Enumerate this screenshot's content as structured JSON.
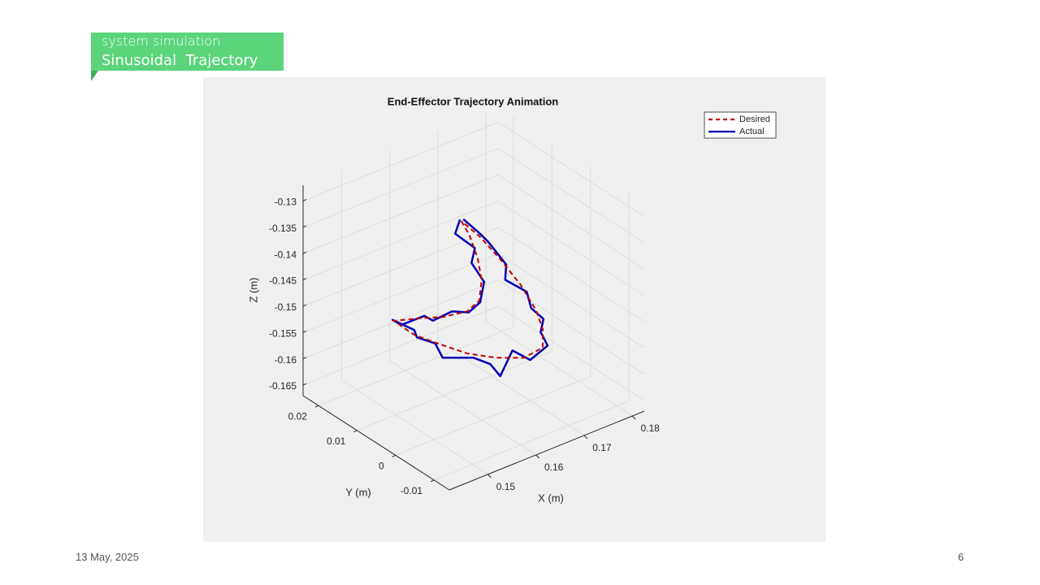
{
  "header": {
    "subtitle": "system simulation",
    "title": "Sinusoidal  Trajectory"
  },
  "footer": {
    "date": "13 May, 2025",
    "page": "6"
  },
  "chart_data": {
    "type": "line3d",
    "title": "End-Effector Trajectory Animation",
    "xlabel": "X (m)",
    "ylabel": "Y (m)",
    "zlabel": "Z (m)",
    "xlim": [
      0.142,
      0.1825
    ],
    "ylim": [
      -0.014,
      0.024
    ],
    "zlim": [
      -0.167,
      -0.127
    ],
    "xticks": [
      0.15,
      0.16,
      0.17,
      0.18
    ],
    "yticks": [
      -0.01,
      0,
      0.01,
      0.02
    ],
    "zticks": [
      -0.165,
      -0.16,
      -0.155,
      -0.15,
      -0.145,
      -0.14,
      -0.135,
      -0.13
    ],
    "grid": true,
    "legend": "upper right",
    "series": [
      {
        "name": "Desired",
        "color": "#c00000",
        "style": "dashed",
        "x": [
          0.1621,
          0.1638,
          0.1655,
          0.1663,
          0.1658,
          0.1633,
          0.1582,
          0.1532,
          0.1481,
          0.1523,
          0.1574,
          0.1633,
          0.1692,
          0.1751,
          0.179,
          0.179,
          0.1776,
          0.1743,
          0.17,
          0.1658,
          0.1621
        ],
        "y": [
          0.008,
          0.008,
          0.008,
          0.008,
          0.008,
          0.008,
          0.008,
          0.008,
          0.008,
          0.008,
          0.008,
          0.008,
          0.008,
          0.008,
          0.008,
          0.008,
          0.008,
          0.008,
          0.008,
          0.008,
          0.008
        ],
        "z": [
          -0.1337,
          -0.1371,
          -0.1421,
          -0.1465,
          -0.1502,
          -0.1513,
          -0.1505,
          -0.1489,
          -0.1475,
          -0.1517,
          -0.1553,
          -0.1593,
          -0.1623,
          -0.1645,
          -0.164,
          -0.1605,
          -0.1564,
          -0.1502,
          -0.1437,
          -0.1379,
          -0.1337
        ]
      },
      {
        "name": "Actual",
        "color": "#0000b4",
        "style": "solid",
        "x": [
          0.1618,
          0.1612,
          0.1645,
          0.165,
          0.1668,
          0.1652,
          0.164,
          0.16,
          0.157,
          0.154,
          0.15,
          0.1478,
          0.1515,
          0.1535,
          0.1565,
          0.159,
          0.164,
          0.1685,
          0.17,
          0.1735,
          0.176,
          0.18,
          0.1792,
          0.1785,
          0.177,
          0.1755,
          0.172,
          0.171,
          0.168,
          0.1655,
          0.1625
        ],
        "y": [
          0.008,
          0.0085,
          0.0075,
          0.009,
          0.008,
          0.007,
          0.0085,
          0.0078,
          0.009,
          0.0075,
          0.0085,
          0.008,
          0.007,
          0.0088,
          0.0078,
          0.009,
          0.0072,
          0.0085,
          0.0078,
          0.009,
          0.0075,
          0.008,
          0.0088,
          0.0072,
          0.0085,
          0.0078,
          0.009,
          0.0075,
          0.0085,
          0.0078,
          0.008
        ],
        "z": [
          -0.1333,
          -0.136,
          -0.1395,
          -0.1432,
          -0.147,
          -0.1498,
          -0.152,
          -0.15,
          -0.1512,
          -0.1485,
          -0.1492,
          -0.1472,
          -0.15,
          -0.153,
          -0.1548,
          -0.159,
          -0.16,
          -0.1635,
          -0.166,
          -0.163,
          -0.165,
          -0.164,
          -0.1615,
          -0.158,
          -0.156,
          -0.152,
          -0.149,
          -0.145,
          -0.14,
          -0.137,
          -0.1335
        ]
      }
    ]
  }
}
